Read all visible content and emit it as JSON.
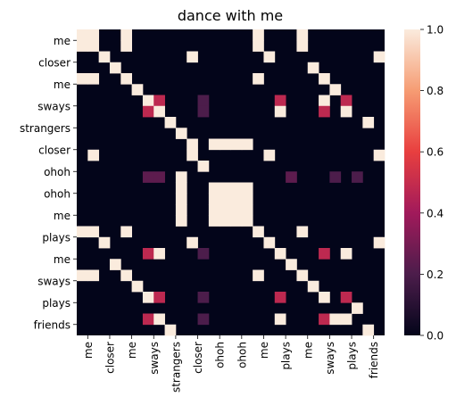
{
  "chart_data": {
    "type": "heatmap",
    "title": "dance with me",
    "xlabel": "",
    "ylabel": "",
    "tokens": [
      "me",
      "me",
      "closer",
      "closer",
      "me",
      "me",
      "sways",
      "sways",
      "strangers",
      "strangers",
      "closer",
      "closer",
      "ohoh",
      "ohoh",
      "ohoh",
      "ohoh",
      "me",
      "me",
      "plays",
      "plays",
      "me",
      "me",
      "sways",
      "sways",
      "plays",
      "plays",
      "friends",
      "friends"
    ],
    "x_tick_labels": [
      "me",
      "closer",
      "me",
      "sways",
      "strangers",
      "closer",
      "ohoh",
      "ohoh",
      "me",
      "plays",
      "me",
      "sways",
      "plays",
      "friends"
    ],
    "y_tick_labels": [
      "me",
      "closer",
      "me",
      "sways",
      "strangers",
      "closer",
      "ohoh",
      "ohoh",
      "me",
      "plays",
      "me",
      "sways",
      "plays",
      "friends"
    ],
    "cells": [
      {
        "row": 0,
        "col": 0,
        "value": 1.0
      },
      {
        "row": 0,
        "col": 1,
        "value": 1.0
      },
      {
        "row": 0,
        "col": 4,
        "value": 1.0
      },
      {
        "row": 0,
        "col": 16,
        "value": 1.0
      },
      {
        "row": 0,
        "col": 20,
        "value": 1.0
      },
      {
        "row": 1,
        "col": 0,
        "value": 1.0
      },
      {
        "row": 1,
        "col": 1,
        "value": 1.0
      },
      {
        "row": 1,
        "col": 4,
        "value": 1.0
      },
      {
        "row": 1,
        "col": 16,
        "value": 1.0
      },
      {
        "row": 1,
        "col": 20,
        "value": 1.0
      },
      {
        "row": 2,
        "col": 2,
        "value": 1.0
      },
      {
        "row": 2,
        "col": 10,
        "value": 1.0
      },
      {
        "row": 2,
        "col": 17,
        "value": 1.0
      },
      {
        "row": 2,
        "col": 27,
        "value": 1.0
      },
      {
        "row": 3,
        "col": 3,
        "value": 1.0
      },
      {
        "row": 3,
        "col": 21,
        "value": 1.0
      },
      {
        "row": 4,
        "col": 0,
        "value": 1.0
      },
      {
        "row": 4,
        "col": 1,
        "value": 1.0
      },
      {
        "row": 4,
        "col": 4,
        "value": 1.0
      },
      {
        "row": 4,
        "col": 16,
        "value": 1.0
      },
      {
        "row": 4,
        "col": 22,
        "value": 1.0
      },
      {
        "row": 5,
        "col": 5,
        "value": 1.0
      },
      {
        "row": 5,
        "col": 23,
        "value": 1.0
      },
      {
        "row": 6,
        "col": 6,
        "value": 1.0
      },
      {
        "row": 6,
        "col": 7,
        "value": 0.48
      },
      {
        "row": 6,
        "col": 11,
        "value": 0.2
      },
      {
        "row": 6,
        "col": 18,
        "value": 0.48
      },
      {
        "row": 6,
        "col": 22,
        "value": 1.0
      },
      {
        "row": 6,
        "col": 24,
        "value": 0.48
      },
      {
        "row": 7,
        "col": 6,
        "value": 0.48
      },
      {
        "row": 7,
        "col": 7,
        "value": 1.0
      },
      {
        "row": 7,
        "col": 11,
        "value": 0.2
      },
      {
        "row": 7,
        "col": 18,
        "value": 1.0
      },
      {
        "row": 7,
        "col": 22,
        "value": 0.48
      },
      {
        "row": 7,
        "col": 24,
        "value": 1.0
      },
      {
        "row": 8,
        "col": 8,
        "value": 1.0
      },
      {
        "row": 8,
        "col": 26,
        "value": 1.0
      },
      {
        "row": 9,
        "col": 9,
        "value": 1.0
      },
      {
        "row": 10,
        "col": 10,
        "value": 1.0
      },
      {
        "row": 10,
        "col": 12,
        "value": 1.0
      },
      {
        "row": 10,
        "col": 13,
        "value": 1.0
      },
      {
        "row": 10,
        "col": 14,
        "value": 1.0
      },
      {
        "row": 10,
        "col": 15,
        "value": 1.0
      },
      {
        "row": 11,
        "col": 1,
        "value": 1.0
      },
      {
        "row": 11,
        "col": 10,
        "value": 1.0
      },
      {
        "row": 11,
        "col": 17,
        "value": 1.0
      },
      {
        "row": 11,
        "col": 27,
        "value": 1.0
      },
      {
        "row": 12,
        "col": 11,
        "value": 1.0
      },
      {
        "row": 13,
        "col": 6,
        "value": 0.24
      },
      {
        "row": 13,
        "col": 7,
        "value": 0.24
      },
      {
        "row": 13,
        "col": 9,
        "value": 1.0
      },
      {
        "row": 13,
        "col": 19,
        "value": 0.24
      },
      {
        "row": 13,
        "col": 23,
        "value": 0.2
      },
      {
        "row": 13,
        "col": 25,
        "value": 0.2
      },
      {
        "row": 14,
        "col": 9,
        "value": 1.0
      },
      {
        "row": 14,
        "col": 12,
        "value": 1.0
      },
      {
        "row": 14,
        "col": 13,
        "value": 1.0
      },
      {
        "row": 14,
        "col": 14,
        "value": 1.0
      },
      {
        "row": 14,
        "col": 15,
        "value": 1.0
      },
      {
        "row": 15,
        "col": 9,
        "value": 1.0
      },
      {
        "row": 15,
        "col": 12,
        "value": 1.0
      },
      {
        "row": 15,
        "col": 13,
        "value": 1.0
      },
      {
        "row": 15,
        "col": 14,
        "value": 1.0
      },
      {
        "row": 15,
        "col": 15,
        "value": 1.0
      },
      {
        "row": 16,
        "col": 9,
        "value": 1.0
      },
      {
        "row": 16,
        "col": 12,
        "value": 1.0
      },
      {
        "row": 16,
        "col": 13,
        "value": 1.0
      },
      {
        "row": 16,
        "col": 14,
        "value": 1.0
      },
      {
        "row": 16,
        "col": 15,
        "value": 1.0
      },
      {
        "row": 17,
        "col": 9,
        "value": 1.0
      },
      {
        "row": 17,
        "col": 12,
        "value": 1.0
      },
      {
        "row": 17,
        "col": 13,
        "value": 1.0
      },
      {
        "row": 17,
        "col": 14,
        "value": 1.0
      },
      {
        "row": 17,
        "col": 15,
        "value": 1.0
      },
      {
        "row": 18,
        "col": 0,
        "value": 1.0
      },
      {
        "row": 18,
        "col": 1,
        "value": 1.0
      },
      {
        "row": 18,
        "col": 4,
        "value": 1.0
      },
      {
        "row": 18,
        "col": 16,
        "value": 1.0
      },
      {
        "row": 18,
        "col": 20,
        "value": 1.0
      },
      {
        "row": 19,
        "col": 2,
        "value": 1.0
      },
      {
        "row": 19,
        "col": 10,
        "value": 1.0
      },
      {
        "row": 19,
        "col": 17,
        "value": 1.0
      },
      {
        "row": 19,
        "col": 27,
        "value": 1.0
      },
      {
        "row": 20,
        "col": 6,
        "value": 0.48
      },
      {
        "row": 20,
        "col": 7,
        "value": 1.0
      },
      {
        "row": 20,
        "col": 11,
        "value": 0.2
      },
      {
        "row": 20,
        "col": 18,
        "value": 1.0
      },
      {
        "row": 20,
        "col": 22,
        "value": 0.48
      },
      {
        "row": 20,
        "col": 24,
        "value": 1.0
      },
      {
        "row": 21,
        "col": 3,
        "value": 1.0
      },
      {
        "row": 21,
        "col": 19,
        "value": 1.0
      },
      {
        "row": 22,
        "col": 0,
        "value": 1.0
      },
      {
        "row": 22,
        "col": 1,
        "value": 1.0
      },
      {
        "row": 22,
        "col": 4,
        "value": 1.0
      },
      {
        "row": 22,
        "col": 16,
        "value": 1.0
      },
      {
        "row": 22,
        "col": 20,
        "value": 1.0
      },
      {
        "row": 23,
        "col": 5,
        "value": 1.0
      },
      {
        "row": 23,
        "col": 21,
        "value": 1.0
      },
      {
        "row": 24,
        "col": 6,
        "value": 1.0
      },
      {
        "row": 24,
        "col": 7,
        "value": 0.48
      },
      {
        "row": 24,
        "col": 11,
        "value": 0.2
      },
      {
        "row": 24,
        "col": 18,
        "value": 0.48
      },
      {
        "row": 24,
        "col": 22,
        "value": 1.0
      },
      {
        "row": 24,
        "col": 24,
        "value": 0.48
      },
      {
        "row": 25,
        "col": 25,
        "value": 1.0
      },
      {
        "row": 26,
        "col": 6,
        "value": 0.48
      },
      {
        "row": 26,
        "col": 7,
        "value": 1.0
      },
      {
        "row": 26,
        "col": 11,
        "value": 0.2
      },
      {
        "row": 26,
        "col": 18,
        "value": 1.0
      },
      {
        "row": 26,
        "col": 22,
        "value": 0.48
      },
      {
        "row": 26,
        "col": 23,
        "value": 1.0
      },
      {
        "row": 26,
        "col": 24,
        "value": 1.0
      },
      {
        "row": 27,
        "col": 8,
        "value": 1.0
      },
      {
        "row": 27,
        "col": 26,
        "value": 1.0
      }
    ],
    "colorbar": {
      "range": [
        0.0,
        1.0
      ],
      "ticks": [
        0.0,
        0.2,
        0.4,
        0.6,
        0.8,
        1.0
      ],
      "tick_labels": [
        "0.0",
        "0.2",
        "0.4",
        "0.6",
        "0.8",
        "1.0"
      ],
      "colormap": "rocket",
      "colors": [
        "#03051a",
        "#4c1d4b",
        "#a11a5b",
        "#e83f3f",
        "#f69c73",
        "#faebdd"
      ]
    },
    "grid": false,
    "legend": "colorbar-right"
  }
}
